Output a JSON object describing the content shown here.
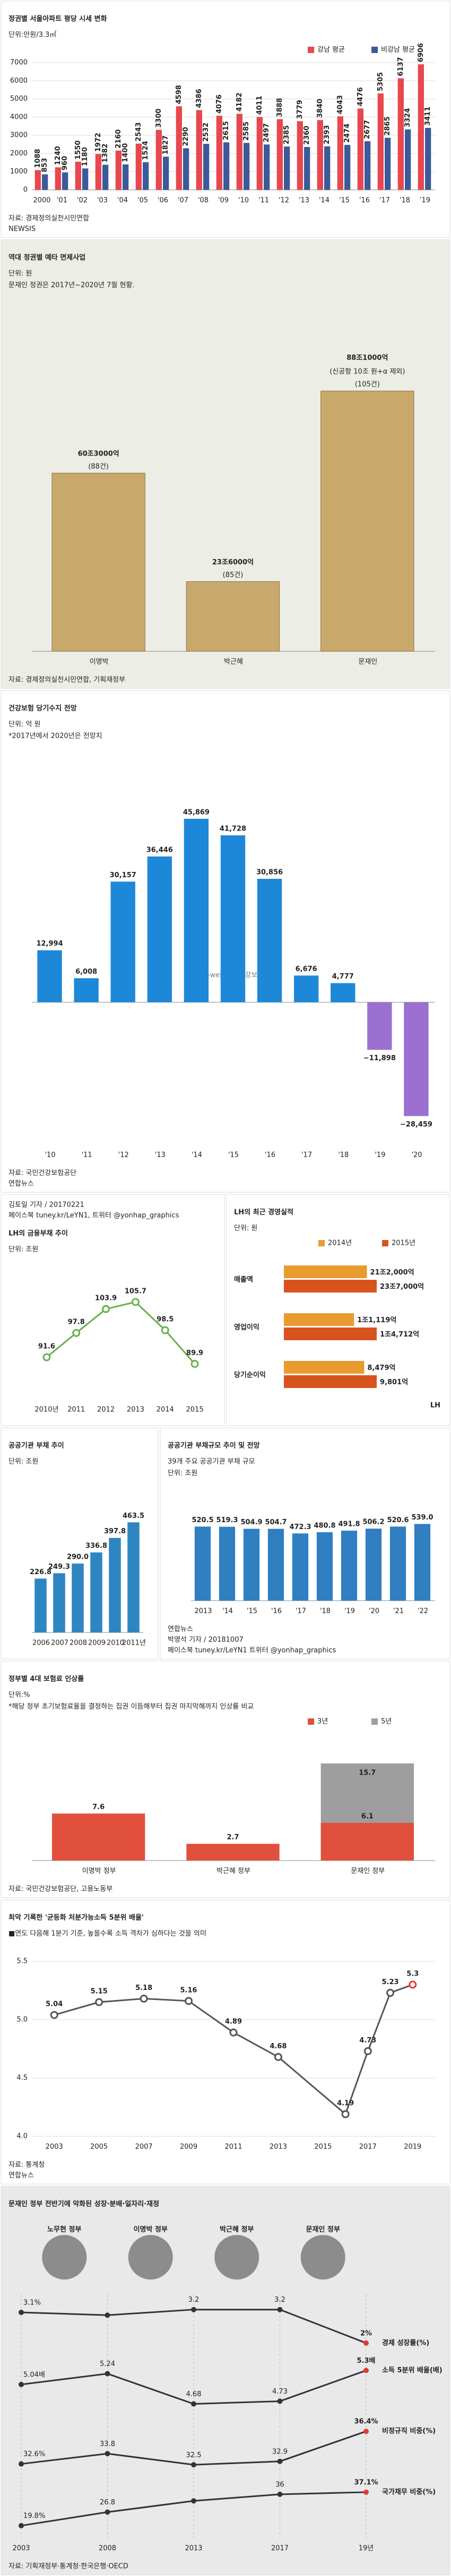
{
  "chart_data": [
    {
      "type": "bar",
      "title": "정권별 서울아파트 평당 시세 변화",
      "unit": "단위:만원/3.3㎡",
      "categories": [
        "2000",
        "'01",
        "'02",
        "'03",
        "'04",
        "'05",
        "'06",
        "'07",
        "'08",
        "'09",
        "'10",
        "'11",
        "'12",
        "'13",
        "'14",
        "'15",
        "'16",
        "'17",
        "'18",
        "'19"
      ],
      "series": [
        {
          "name": "강남 평균",
          "color": "#e8474f",
          "values": [
            1088,
            1240,
            1550,
            1972,
            2160,
            2543,
            3300,
            4598,
            4386,
            4076,
            4182,
            4011,
            3888,
            3779,
            3840,
            4043,
            4476,
            5305,
            6137,
            6906
          ]
        },
        {
          "name": "비강남 평균",
          "color": "#3c5a99",
          "values": [
            853,
            960,
            1180,
            1382,
            1400,
            1524,
            1827,
            2290,
            2532,
            2615,
            2585,
            2497,
            2385,
            2360,
            2393,
            2474,
            2677,
            2865,
            3324,
            3411
          ]
        }
      ],
      "ylim": [
        0,
        7000
      ],
      "yticks": [
        0,
        1000,
        2000,
        3000,
        4000,
        5000,
        6000,
        7000
      ],
      "grid": true,
      "source": "자료: 경제정의실천시민연합",
      "credit": "NEWSIS"
    },
    {
      "type": "bar",
      "title": "역대 정권별 예타 면제사업",
      "unit": "단위: 원",
      "note": "문재인 정권은 2017년~2020년 7월 현황.",
      "categories": [
        "이명박",
        "박근혜",
        "문재인"
      ],
      "values": [
        60.3,
        23.6,
        88.1
      ],
      "value_labels": [
        "60조3000억",
        "23조6000억",
        "88조1000억"
      ],
      "count_labels": [
        "(88건)",
        "(85건)",
        "(105건)"
      ],
      "annotations": [
        null,
        null,
        "(신공항 10조 원+α 제외)"
      ],
      "color": "#c9a96b",
      "background": "#eceee6",
      "source": "자료: 경제정의실천시민연합, 기획재정부"
    },
    {
      "type": "bar",
      "title": "건강보험 당기수지 전망",
      "unit": "단위: 억 원",
      "categories": [
        "'10",
        "'11",
        "'12",
        "'13",
        "'14",
        "'15",
        "'16",
        "'17",
        "'18",
        "'19",
        "'20"
      ],
      "values": [
        12994,
        6008,
        30157,
        36446,
        45869,
        41728,
        30856,
        6676,
        4777,
        -11898,
        -28459
      ],
      "value_labels": [
        "12,994",
        "6,008",
        "30,157",
        "36,446",
        "45,869",
        "41,728",
        "30,856",
        "6,676",
        "4,777",
        "−11,898",
        "−28,459"
      ],
      "colors": [
        "#1e88d8",
        "#1e88d8",
        "#1e88d8",
        "#1e88d8",
        "#1e88d8",
        "#1e88d8",
        "#1e88d8",
        "#1e88d8",
        "#1e88d8",
        "#9b6fd0",
        "#9b6fd0"
      ],
      "watermark": "h-well 국민건강보험",
      "note": "*2017년에서 2020년은 전망치",
      "source": "자료: 국민건강보험공단",
      "credit": "연합뉴스"
    },
    {
      "type": "line",
      "byline": "김토일 기자 / 20170221",
      "contact": "페이스북 tuney.kr/LeYN1, 트위터 @yonhap_graphics",
      "title": "LH의 금융부채 추이",
      "unit": "단위: 조원",
      "categories": [
        "2010년",
        "2011",
        "2012",
        "2013",
        "2014",
        "2015"
      ],
      "values": [
        91.6,
        97.8,
        103.9,
        105.7,
        98.5,
        89.9
      ],
      "color": "#6ab04c"
    },
    {
      "type": "hbar",
      "title": "LH의 최근 경영실적",
      "unit": "단위: 원",
      "categories": [
        "매출액",
        "영업이익",
        "당기순이익"
      ],
      "series": [
        {
          "name": "2014년",
          "color": "#e89b2f",
          "values": [
            212000,
            11119,
            8479
          ],
          "value_labels": [
            "21조2,000억",
            "1조1,119억",
            "8,479억"
          ]
        },
        {
          "name": "2015년",
          "color": "#d9531e",
          "values": [
            237000,
            14712,
            9801
          ],
          "value_labels": [
            "23조7,000억",
            "1조4,712억",
            "9,801억"
          ]
        }
      ],
      "logo": "LH"
    },
    {
      "type": "bar",
      "title": "공공기관 부채 추이",
      "unit": "단위: 조원",
      "categories": [
        "2006",
        "2007",
        "2008",
        "2009",
        "2010",
        "2011년"
      ],
      "values": [
        226.8,
        249.3,
        290.0,
        336.8,
        397.8,
        463.5
      ],
      "value_labels": [
        "226.8",
        "249.3",
        "290.0",
        "336.8",
        "397.8",
        "463.5"
      ],
      "color": "#2e86c1"
    },
    {
      "type": "bar",
      "title": "공공기관 부채규모 추이 및 전망",
      "subtitle": "39개 주요 공공기관 부채 규모",
      "unit": "단위: 조원",
      "categories": [
        "2013",
        "'14",
        "'15",
        "'16",
        "'17",
        "'18",
        "'19",
        "'20",
        "'21",
        "'22"
      ],
      "values": [
        520.5,
        519.3,
        504.9,
        504.7,
        472.3,
        480.8,
        491.8,
        506.2,
        520.6,
        539.0
      ],
      "value_labels": [
        "520.5",
        "519.3",
        "504.9",
        "504.7",
        "472.3",
        "480.8",
        "491.8",
        "506.2",
        "520.6",
        "539.0"
      ],
      "color": "#2f7fc1",
      "source": "연합뉴스",
      "footer_byline": "박영석 기자 / 20181007",
      "footer_contact": "페이스북 tuney.kr/LeYN1 트위터 @yonhap_graphics"
    },
    {
      "type": "bar",
      "title": "정부별 4대 보험료 인상률",
      "unit": "단위:%",
      "categories": [
        "이명박 정부",
        "박근혜 정부",
        "문재인 정부"
      ],
      "overlap": true,
      "series": [
        {
          "name": "3년",
          "color": "#e0503c",
          "values": [
            7.6,
            2.7,
            6.1
          ]
        },
        {
          "name": "5년",
          "color": "#9e9e9e",
          "values": [
            null,
            null,
            15.7
          ]
        }
      ],
      "note": "*해당 정부 초기보험료율을 결정하는 집권 이듬해부터 집권 마지막해까지 인상률 비교",
      "source": "자료: 국민건강보험공단, 고용노동부"
    },
    {
      "type": "line",
      "title": "최악 기록한 '균등화 처분가능소득 5분위 배율'",
      "subtitle": "■연도 다음해 1분기 기준, 높을수록 소득 격차가 심하다는 것을 의미",
      "x": [
        2003,
        2005,
        2007,
        2009,
        2011,
        2013,
        2016,
        2017,
        2018,
        2019
      ],
      "values": [
        5.04,
        5.15,
        5.18,
        5.16,
        4.89,
        4.68,
        4.19,
        4.73,
        5.23,
        5.3
      ],
      "xlim": [
        2002,
        2020
      ],
      "xticks": [
        2003,
        2005,
        2007,
        2009,
        2011,
        2013,
        2015,
        2017,
        2019
      ],
      "ylim": [
        4,
        5.5
      ],
      "yticks": [
        {
          "value": 4,
          "label": "4.0"
        },
        4.5,
        {
          "value": 5,
          "label": "5.0"
        },
        5.5
      ],
      "grid": true,
      "color": "#555555",
      "highlight": "#e53935",
      "source": "자료: 통계청",
      "credit": "연합뉴스"
    },
    {
      "type": "multi",
      "title": "문재인 정부 전반기에 악화된 성장·분배·일자리·재정",
      "governments": [
        "노무현 정부",
        "이명박 정부",
        "박근혜 정부",
        "문재인 정부"
      ],
      "categories": [
        "2003",
        "2008",
        "2013",
        "2017",
        "19년"
      ],
      "series": [
        {
          "name": "경제 성장률(%)",
          "color": "#333333",
          "values": [
            3.1,
            3.0,
            3.2,
            3.2,
            2.0
          ],
          "value_labels": [
            "3.1%",
            null,
            "3.2",
            "3.2",
            "2%"
          ]
        },
        {
          "name": "소득 5분위 배율(배)",
          "color": "#333333",
          "values": [
            5.04,
            5.24,
            4.68,
            4.73,
            5.3
          ],
          "value_labels": [
            "5.04배",
            "5.24",
            "4.68",
            "4.73",
            "5.3배"
          ]
        },
        {
          "name": "비정규직 비중(%)",
          "color": "#333333",
          "values": [
            32.6,
            33.8,
            32.5,
            32.9,
            36.4
          ],
          "value_labels": [
            "32.6%",
            "33.8",
            "32.5",
            "32.9",
            "36.4%"
          ]
        },
        {
          "name": "국가채무 비중(%)",
          "color": "#333333",
          "values": [
            19.8,
            26.8,
            32.6,
            36,
            37.1
          ],
          "value_labels": [
            "19.8%",
            "26.8",
            null,
            "36",
            "37.1%"
          ]
        }
      ],
      "background": "#e9e9e9",
      "source": "자료: 기획재정부·통계청·한국은행·OECD"
    }
  ]
}
